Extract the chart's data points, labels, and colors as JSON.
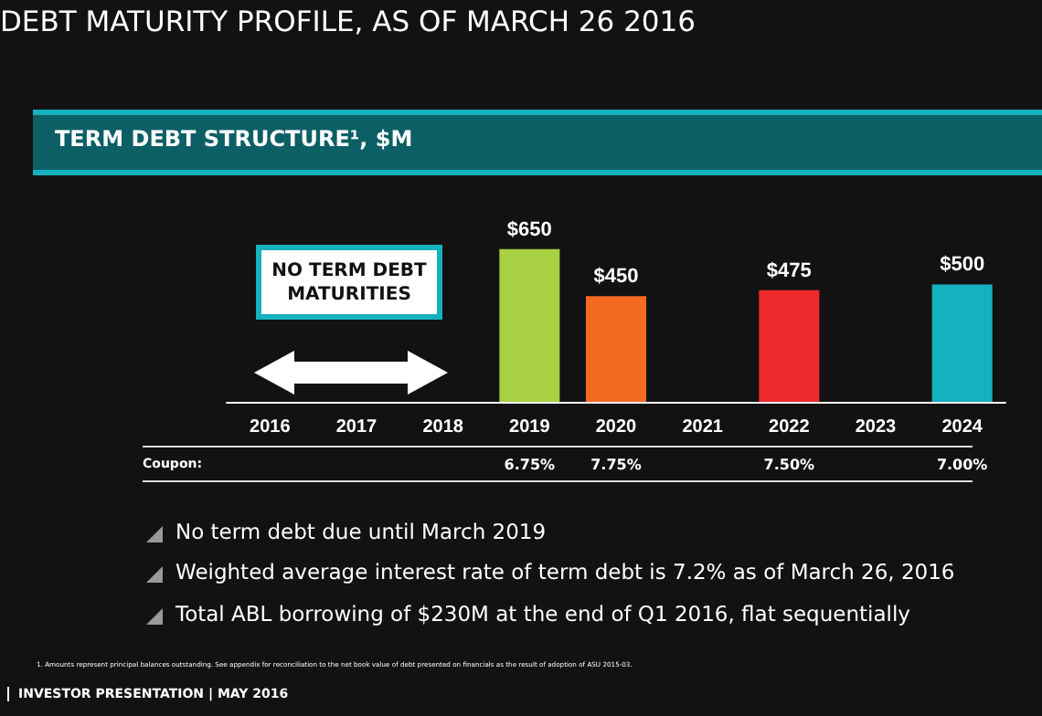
{
  "chart_data": {
    "type": "bar",
    "title": "DEBT MATURITY PROFILE, AS OF MARCH 26 2016",
    "subtitle": "TERM DEBT STRUCTURE¹, $M",
    "categories": [
      "2016",
      "2017",
      "2018",
      "2019",
      "2020",
      "2021",
      "2022",
      "2023",
      "2024"
    ],
    "values": [
      null,
      null,
      null,
      650,
      450,
      null,
      475,
      null,
      500
    ],
    "colors": [
      "#a8d043",
      "#a8d043",
      "#a8d043",
      "#a8d043",
      "#f26b21",
      "#ee2a2d",
      "#ee2a2d",
      "#14b1bf",
      "#14b1bf"
    ],
    "value_labels": [
      null,
      null,
      null,
      "$650",
      "$450",
      null,
      "$475",
      null,
      "$500"
    ],
    "annotations": [
      "NO TERM DEBT MATURITIES",
      "Coupon:",
      "6.75%",
      "7.75%",
      "7.50%",
      "7.00%",
      "No term debt due until March 2019",
      "Weighted average interest rate of term debt is 7.2% as of March 26, 2016",
      "Total ABL borrowing of $230M at the end of Q1 2016, flat sequentially",
      "1. Amounts represent principal balances outstanding. See appendix for reconciliation to the net book value of debt presented on financials as the result of adoption of ASU 2015-03.",
      "INVESTOR PRESENTATION | MAY 2016"
    ]
  }
}
